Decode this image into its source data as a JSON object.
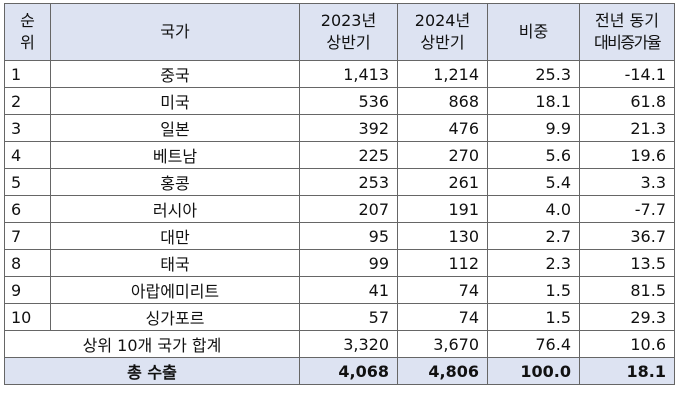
{
  "headers": {
    "rank": [
      "순",
      "위"
    ],
    "country": "국가",
    "y2023": [
      "2023년",
      "상반기"
    ],
    "y2024": [
      "2024년",
      "상반기"
    ],
    "share": "비중",
    "yoy": [
      "전년 동기",
      "대비증가율"
    ]
  },
  "rows": [
    {
      "rank": "1",
      "country": "중국",
      "y2023": "1,413",
      "y2024": "1,214",
      "share": "25.3",
      "yoy": "-14.1"
    },
    {
      "rank": "2",
      "country": "미국",
      "y2023": "536",
      "y2024": "868",
      "share": "18.1",
      "yoy": "61.8"
    },
    {
      "rank": "3",
      "country": "일본",
      "y2023": "392",
      "y2024": "476",
      "share": "9.9",
      "yoy": "21.3"
    },
    {
      "rank": "4",
      "country": "베트남",
      "y2023": "225",
      "y2024": "270",
      "share": "5.6",
      "yoy": "19.6"
    },
    {
      "rank": "5",
      "country": "홍콩",
      "y2023": "253",
      "y2024": "261",
      "share": "5.4",
      "yoy": "3.3"
    },
    {
      "rank": "6",
      "country": "러시아",
      "y2023": "207",
      "y2024": "191",
      "share": "4.0",
      "yoy": "-7.7"
    },
    {
      "rank": "7",
      "country": "대만",
      "y2023": "95",
      "y2024": "130",
      "share": "2.7",
      "yoy": "36.7"
    },
    {
      "rank": "8",
      "country": "태국",
      "y2023": "99",
      "y2024": "112",
      "share": "2.3",
      "yoy": "13.5"
    },
    {
      "rank": "9",
      "country": "아랍에미리트",
      "y2023": "41",
      "y2024": "74",
      "share": "1.5",
      "yoy": "81.5"
    },
    {
      "rank": "10",
      "country": "싱가포르",
      "y2023": "57",
      "y2024": "74",
      "share": "1.5",
      "yoy": "29.3"
    }
  ],
  "subtotal": {
    "label": "상위 10개 국가 합계",
    "y2023": "3,320",
    "y2024": "3,670",
    "share": "76.4",
    "yoy": "10.6"
  },
  "total": {
    "label": "총 수출",
    "y2023": "4,068",
    "y2024": "4,806",
    "share": "100.0",
    "yoy": "18.1"
  },
  "colors": {
    "header_bg": "#dde3f2",
    "border": "#666666"
  }
}
